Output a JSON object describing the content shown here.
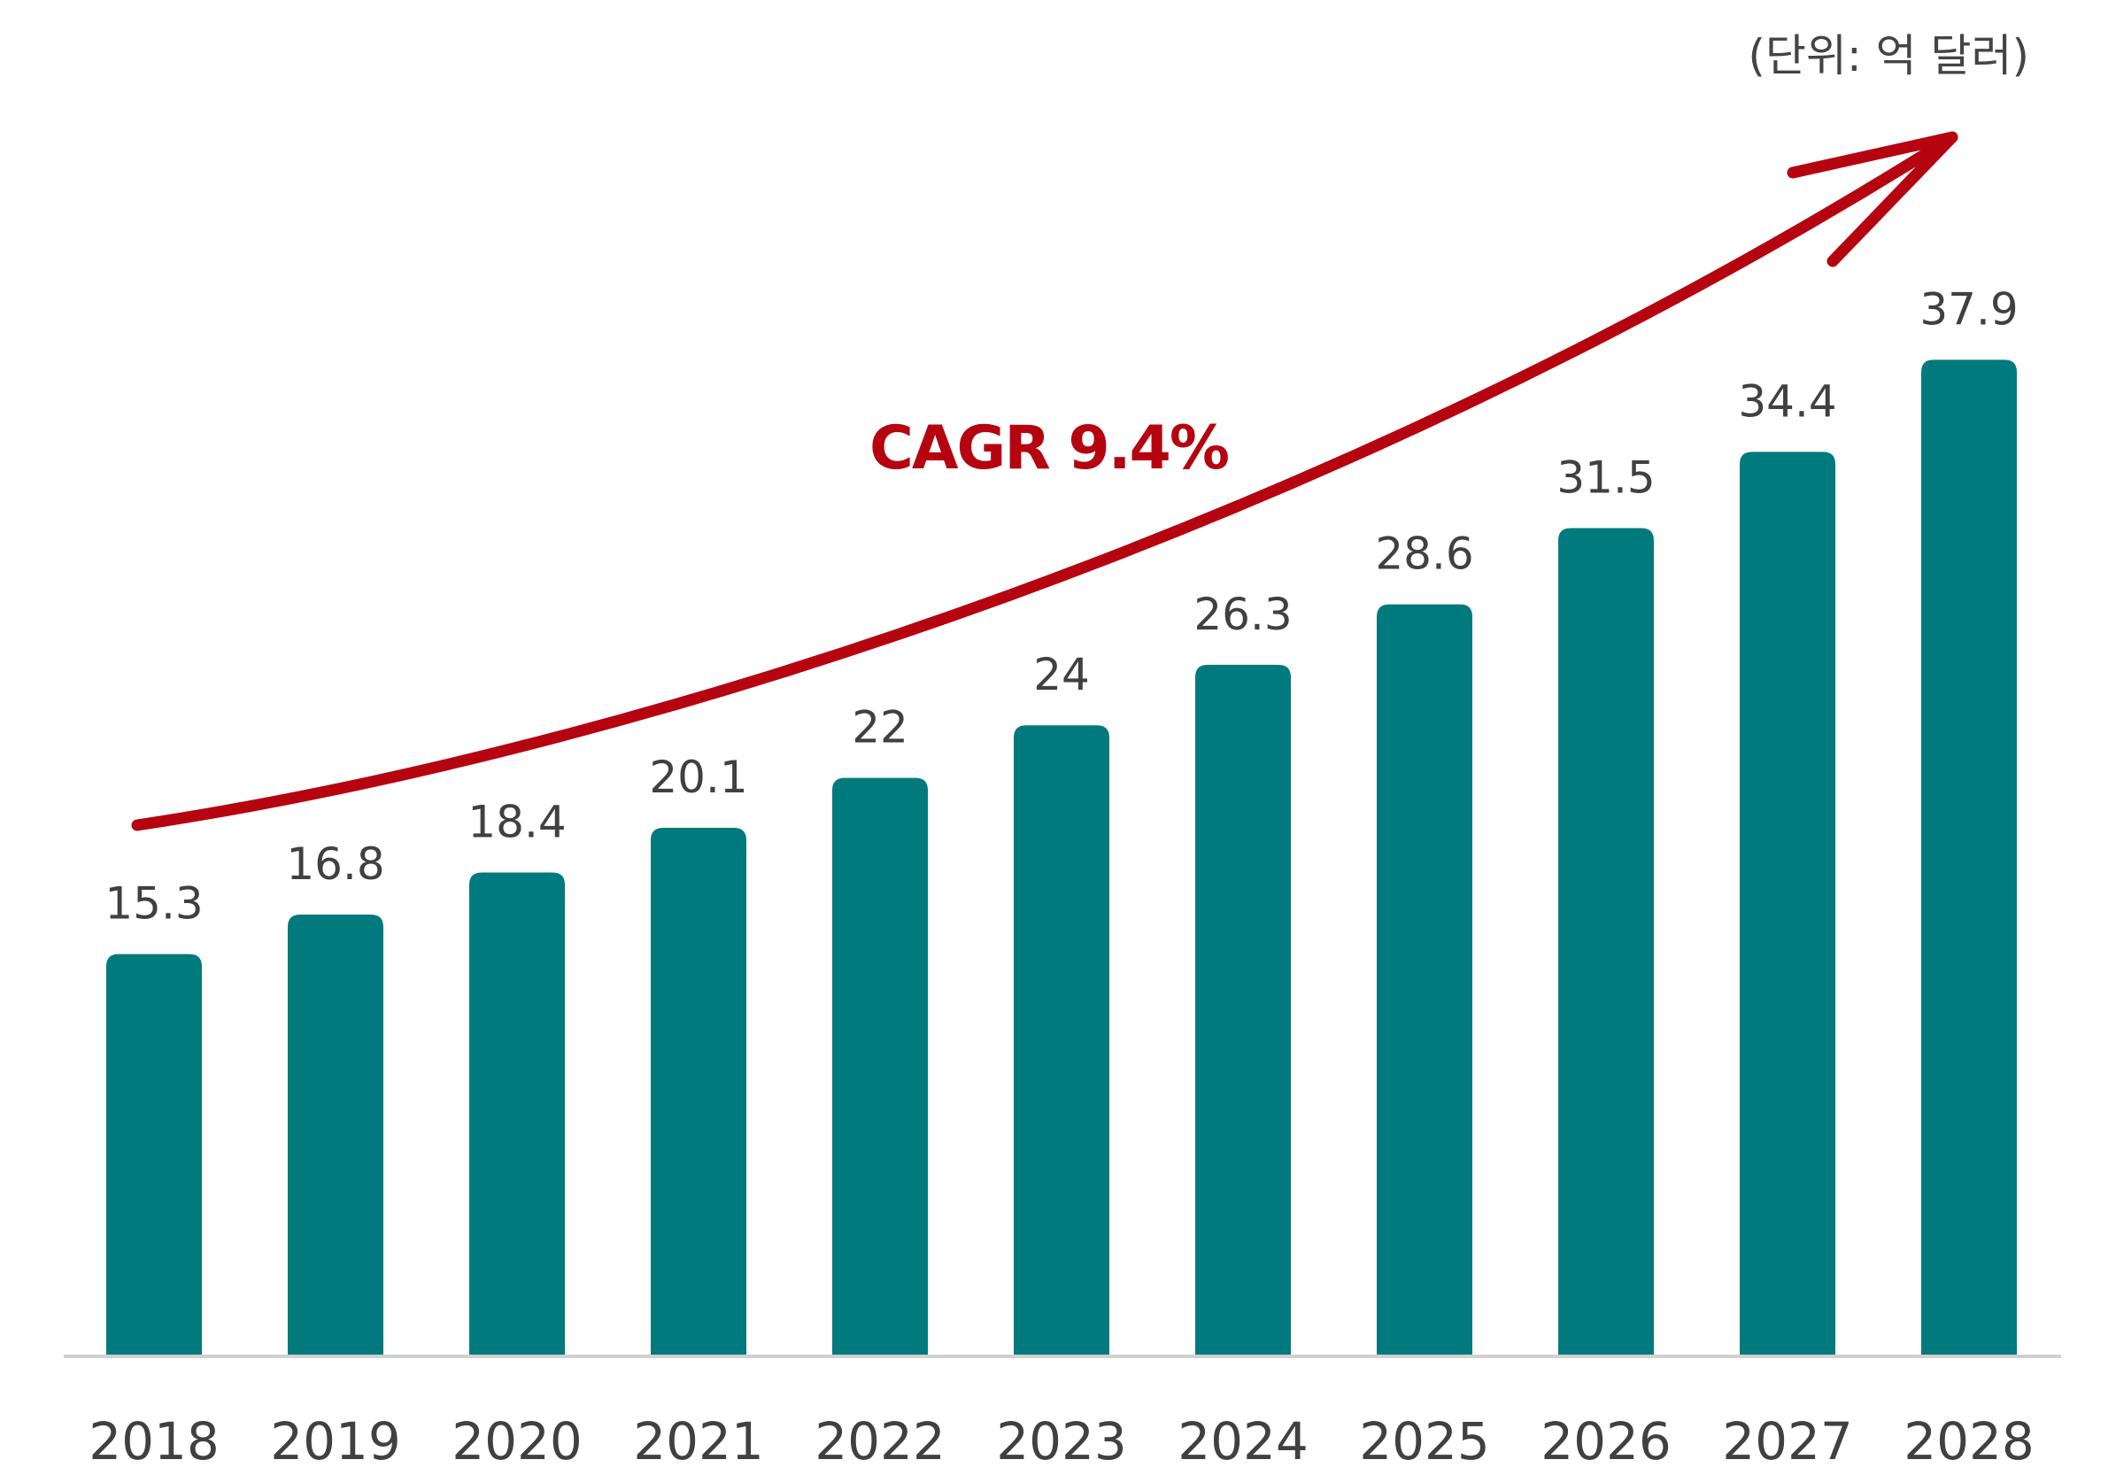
{
  "colors": {
    "bar": "#007A7D",
    "axis": "#D0D0D0",
    "arrow": "#B5030F",
    "text": "#404040"
  },
  "chart_data": {
    "type": "bar",
    "unit": "(단위: 억 달러)",
    "categories": [
      "2018",
      "2019",
      "2020",
      "2021",
      "2022",
      "2023",
      "2024",
      "2025",
      "2026",
      "2027",
      "2028"
    ],
    "values": [
      15.3,
      16.8,
      18.4,
      20.1,
      22,
      24,
      26.3,
      28.6,
      31.5,
      34.4,
      37.9
    ],
    "data_labels": [
      "15.3",
      "16.8",
      "18.4",
      "20.1",
      "22",
      "24",
      "26.3",
      "28.6",
      "31.5",
      "34.4",
      "37.9"
    ],
    "annotation": "CAGR 9.4%",
    "trend_arrow": true,
    "grid": false,
    "legend": "none"
  }
}
